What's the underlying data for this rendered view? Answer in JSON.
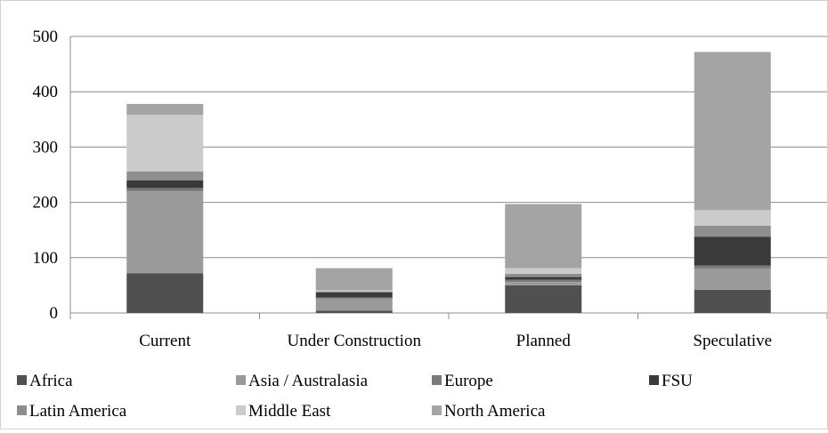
{
  "chart_data": {
    "type": "bar",
    "stacked": true,
    "categories": [
      "Current",
      "Under Construction",
      "Planned",
      "Speculative"
    ],
    "series": [
      {
        "name": "Africa",
        "color": "#505050",
        "values": [
          72,
          4,
          50,
          42
        ]
      },
      {
        "name": "Asia / Australasia",
        "color": "#9a9a9a",
        "values": [
          148,
          22,
          6,
          38
        ]
      },
      {
        "name": "Europe",
        "color": "#7a7a7a",
        "values": [
          6,
          2,
          4,
          6
        ]
      },
      {
        "name": "FSU",
        "color": "#3a3a3a",
        "values": [
          14,
          9,
          5,
          52
        ]
      },
      {
        "name": "Latin America",
        "color": "#8e8e8e",
        "values": [
          16,
          2,
          6,
          20
        ]
      },
      {
        "name": "Middle East",
        "color": "#cbcbcb",
        "values": [
          102,
          2,
          10,
          28
        ]
      },
      {
        "name": "North America",
        "color": "#a4a4a4",
        "values": [
          20,
          40,
          116,
          286
        ]
      }
    ],
    "y_ticks": [
      0,
      100,
      200,
      300,
      400,
      500
    ],
    "ylim": [
      0,
      500
    ],
    "grid": true,
    "legend_position": "bottom",
    "title": "",
    "xlabel": "",
    "ylabel": ""
  }
}
